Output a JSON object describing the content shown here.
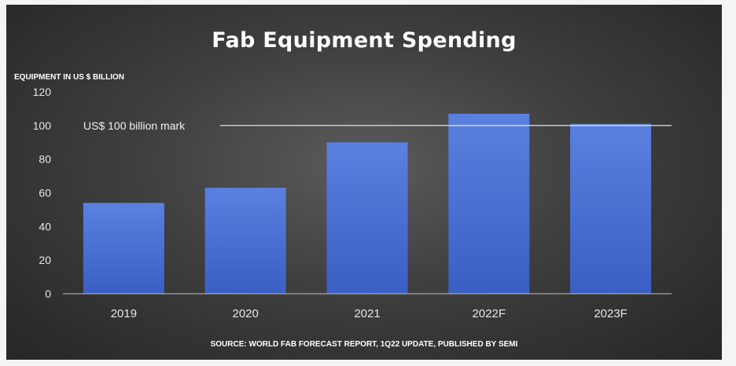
{
  "chart_data": {
    "type": "bar",
    "title": "Fab Equipment Spending",
    "ylabel": "EQUIPMENT IN US $ BILLION",
    "xlabel": "",
    "categories": [
      "2019",
      "2020",
      "2021",
      "2022F",
      "2023F"
    ],
    "values": [
      54,
      63,
      90,
      107,
      101
    ],
    "ylim": [
      0,
      120
    ],
    "yticks": [
      "0",
      "20",
      "40",
      "60",
      "80",
      "100",
      "120"
    ],
    "reference_line": {
      "value": 100,
      "label": "US$ 100 billion mark"
    },
    "source": "SOURCE: WORLD FAB FORECAST REPORT, 1Q22 UPDATE, PUBLISHED BY SEMI",
    "legend": "none",
    "grid": false,
    "bar_color": "#4a72d6"
  }
}
